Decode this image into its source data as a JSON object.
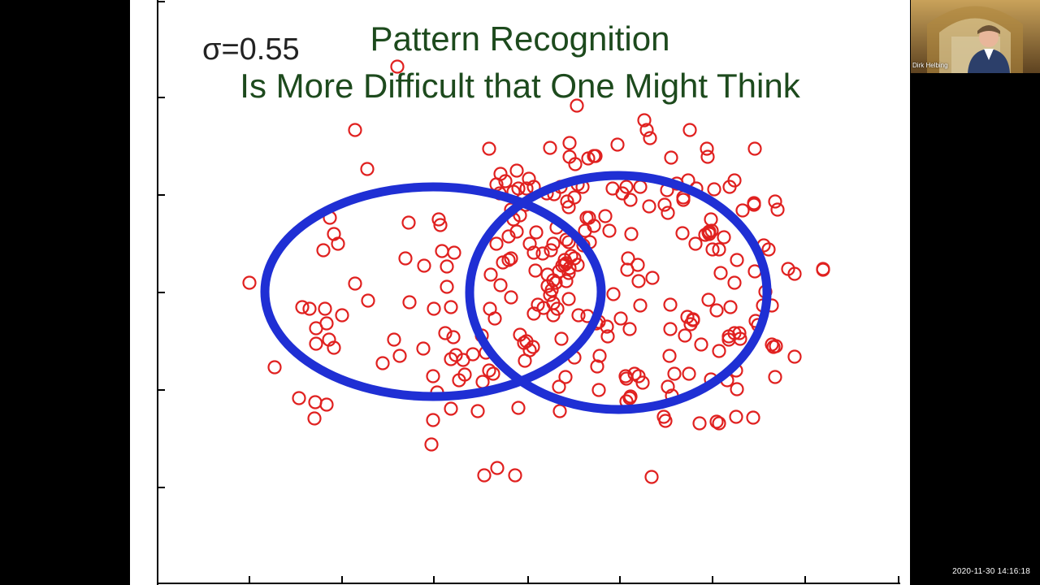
{
  "slide": {
    "sigma_label": "σ=0.55",
    "title_line1": "Pattern Recognition",
    "title_line2": "Is More Difficult that One Might Think",
    "title_color": "#1d4a1d"
  },
  "chart_data": {
    "type": "scatter",
    "marker": "open-circle",
    "point_color": "#e0201f",
    "ellipse_color": "#1f2fd4",
    "grid": false,
    "points": [
      [
        147,
        348
      ],
      [
        277,
        160
      ],
      [
        329,
        82
      ],
      [
        292,
        208
      ],
      [
        246,
        268
      ],
      [
        251,
        288
      ],
      [
        238,
        308
      ],
      [
        256,
        300
      ],
      [
        240,
        380
      ],
      [
        212,
        378
      ],
      [
        221,
        380
      ],
      [
        229,
        404
      ],
      [
        242,
        398
      ],
      [
        261,
        388
      ],
      [
        245,
        418
      ],
      [
        229,
        423
      ],
      [
        251,
        428
      ],
      [
        208,
        490
      ],
      [
        228,
        495
      ],
      [
        242,
        498
      ],
      [
        227,
        515
      ],
      [
        178,
        452
      ],
      [
        277,
        349
      ],
      [
        293,
        370
      ],
      [
        343,
        274
      ],
      [
        339,
        318
      ],
      [
        311,
        447
      ],
      [
        332,
        438
      ],
      [
        325,
        418
      ],
      [
        344,
        372
      ],
      [
        374,
        380
      ],
      [
        361,
        429
      ],
      [
        362,
        327
      ],
      [
        382,
        277
      ],
      [
        380,
        270
      ],
      [
        384,
        309
      ],
      [
        399,
        311
      ],
      [
        390,
        328
      ],
      [
        390,
        353
      ],
      [
        395,
        378
      ],
      [
        373,
        463
      ],
      [
        395,
        442
      ],
      [
        398,
        415
      ],
      [
        412,
        461
      ],
      [
        401,
        437
      ],
      [
        405,
        468
      ],
      [
        410,
        443
      ],
      [
        388,
        410
      ],
      [
        378,
        483
      ],
      [
        373,
        517
      ],
      [
        371,
        547
      ],
      [
        395,
        503
      ],
      [
        428,
        506
      ],
      [
        434,
        470
      ],
      [
        442,
        456
      ],
      [
        447,
        460
      ],
      [
        422,
        436
      ],
      [
        438,
        434
      ],
      [
        433,
        413
      ],
      [
        443,
        380
      ],
      [
        456,
        351
      ],
      [
        444,
        338
      ],
      [
        459,
        323
      ],
      [
        466,
        320
      ],
      [
        451,
        300
      ],
      [
        466,
        291
      ],
      [
        472,
        270
      ],
      [
        487,
        252
      ],
      [
        451,
        227
      ],
      [
        442,
        183
      ],
      [
        476,
        210
      ],
      [
        455,
        238
      ],
      [
        472,
        236
      ],
      [
        491,
        220
      ],
      [
        497,
        230
      ],
      [
        488,
        232
      ],
      [
        480,
        265
      ],
      [
        476,
        285
      ],
      [
        469,
        318
      ],
      [
        469,
        366
      ],
      [
        449,
        392
      ],
      [
        480,
        412
      ],
      [
        486,
        444
      ],
      [
        485,
        422
      ],
      [
        496,
        427
      ],
      [
        492,
        431
      ],
      [
        488,
        420
      ],
      [
        478,
        502
      ],
      [
        436,
        585
      ],
      [
        452,
        576
      ],
      [
        474,
        585
      ],
      [
        529,
        506
      ],
      [
        528,
        476
      ],
      [
        536,
        464
      ],
      [
        547,
        440
      ],
      [
        531,
        417
      ],
      [
        540,
        368
      ],
      [
        521,
        388
      ],
      [
        526,
        380
      ],
      [
        514,
        352
      ],
      [
        521,
        345
      ],
      [
        537,
        324
      ],
      [
        541,
        330
      ],
      [
        532,
        327
      ],
      [
        535,
        320
      ],
      [
        547,
        318
      ],
      [
        537,
        346
      ],
      [
        521,
        300
      ],
      [
        519,
        357
      ],
      [
        518,
        308
      ],
      [
        525,
        280
      ],
      [
        540,
        298
      ],
      [
        558,
        302
      ],
      [
        565,
        268
      ],
      [
        560,
        284
      ],
      [
        547,
        243
      ],
      [
        551,
        227
      ],
      [
        541,
        193
      ],
      [
        517,
        182
      ],
      [
        541,
        176
      ],
      [
        550,
        130
      ],
      [
        548,
        202
      ],
      [
        557,
        230
      ],
      [
        571,
        192
      ],
      [
        564,
        195
      ],
      [
        573,
        192
      ],
      [
        562,
        268
      ],
      [
        566,
        298
      ],
      [
        571,
        278
      ],
      [
        585,
        266
      ],
      [
        590,
        284
      ],
      [
        594,
        232
      ],
      [
        606,
        238
      ],
      [
        611,
        230
      ],
      [
        616,
        246
      ],
      [
        628,
        230
      ],
      [
        639,
        254
      ],
      [
        617,
        288
      ],
      [
        613,
        318
      ],
      [
        612,
        332
      ],
      [
        625,
        326
      ],
      [
        626,
        346
      ],
      [
        595,
        362
      ],
      [
        574,
        398
      ],
      [
        587,
        402
      ],
      [
        578,
        438
      ],
      [
        575,
        451
      ],
      [
        610,
        463
      ],
      [
        621,
        460
      ],
      [
        631,
        471
      ],
      [
        615,
        490
      ],
      [
        611,
        494
      ],
      [
        616,
        488
      ],
      [
        657,
        513
      ],
      [
        662,
        476
      ],
      [
        670,
        460
      ],
      [
        664,
        438
      ],
      [
        665,
        405
      ],
      [
        683,
        413
      ],
      [
        690,
        399
      ],
      [
        693,
        394
      ],
      [
        665,
        375
      ],
      [
        686,
        390
      ],
      [
        712,
        369
      ],
      [
        681,
        246
      ],
      [
        662,
        262
      ],
      [
        661,
        234
      ],
      [
        687,
        222
      ],
      [
        715,
        270
      ],
      [
        712,
        286
      ],
      [
        716,
        284
      ],
      [
        713,
        288
      ],
      [
        731,
        292
      ],
      [
        727,
        336
      ],
      [
        747,
        320
      ],
      [
        768,
        252
      ],
      [
        794,
        248
      ],
      [
        797,
        258
      ],
      [
        786,
        307
      ],
      [
        810,
        331
      ],
      [
        779,
        376
      ],
      [
        782,
        359
      ],
      [
        751,
        417
      ],
      [
        737,
        414
      ],
      [
        725,
        432
      ],
      [
        715,
        467
      ],
      [
        725,
        521
      ],
      [
        746,
        456
      ],
      [
        750,
        410
      ],
      [
        770,
        395
      ],
      [
        773,
        400
      ],
      [
        790,
        376
      ],
      [
        739,
        378
      ],
      [
        744,
        410
      ],
      [
        693,
        393
      ],
      [
        722,
        382
      ],
      [
        818,
        439
      ],
      [
        790,
        424
      ],
      [
        689,
        160
      ],
      [
        710,
        183
      ],
      [
        666,
        194
      ],
      [
        633,
        148
      ],
      [
        636,
        160
      ],
      [
        640,
        170
      ],
      [
        642,
        587
      ],
      [
        722,
        519
      ],
      [
        792,
        427
      ],
      [
        737,
        418
      ],
      [
        688,
        460
      ],
      [
        703,
        424
      ],
      [
        769,
        183
      ],
      [
        711,
        193
      ],
      [
        696,
        300
      ],
      [
        708,
        289
      ],
      [
        744,
        348
      ],
      [
        717,
        307
      ],
      [
        628,
        376
      ],
      [
        643,
        342
      ],
      [
        615,
        405
      ],
      [
        659,
        518
      ],
      [
        701,
        521
      ],
      [
        746,
        513
      ],
      [
        767,
        514
      ],
      [
        794,
        464
      ],
      [
        735,
        468
      ],
      [
        747,
        479
      ],
      [
        667,
        487
      ],
      [
        626,
        463
      ],
      [
        577,
        480
      ],
      [
        611,
        466
      ],
      [
        604,
        392
      ],
      [
        588,
        414
      ],
      [
        577,
        396
      ],
      [
        563,
        389
      ],
      [
        552,
        388
      ],
      [
        514,
        338
      ],
      [
        499,
        333
      ],
      [
        497,
        311
      ],
      [
        517,
        363
      ],
      [
        521,
        373
      ],
      [
        502,
        375
      ],
      [
        497,
        386
      ],
      [
        509,
        379
      ],
      [
        524,
        348
      ],
      [
        528,
        334
      ],
      [
        535,
        326
      ],
      [
        540,
        336
      ],
      [
        551,
        326
      ],
      [
        543,
        315
      ],
      [
        537,
        295
      ],
      [
        508,
        312
      ],
      [
        500,
        286
      ],
      [
        492,
        300
      ],
      [
        456,
        214
      ],
      [
        462,
        223
      ],
      [
        469,
        258
      ],
      [
        478,
        232
      ],
      [
        513,
        238
      ],
      [
        522,
        239
      ],
      [
        530,
        230
      ],
      [
        538,
        248
      ],
      [
        540,
        255
      ],
      [
        600,
        178
      ],
      [
        681,
        243
      ],
      [
        697,
        232
      ],
      [
        680,
        287
      ],
      [
        713,
        285
      ],
      [
        725,
        307
      ],
      [
        769,
        334
      ],
      [
        853,
        332
      ],
      [
        818,
        337
      ],
      [
        795,
        426
      ],
      [
        853,
        331
      ],
      [
        780,
        302
      ],
      [
        768,
        250
      ],
      [
        754,
        259
      ],
      [
        738,
        230
      ],
      [
        719,
        233
      ],
      [
        744,
        222
      ],
      [
        658,
        252
      ],
      [
        673,
        226
      ]
    ],
    "ellipses": [
      {
        "cx": 373,
        "cy": 359,
        "rx": 207,
        "ry": 129
      },
      {
        "cx": 601,
        "cy": 360,
        "rx": 183,
        "ry": 144
      }
    ],
    "xlim": [
      0,
      960
    ],
    "ylim": [
      0,
      720
    ]
  },
  "video_tile": {
    "participant_name": "Dirk Helbing",
    "background_color": "#7a5a2a"
  },
  "status": {
    "timestamp": "2020-11-30  14:16:18"
  }
}
